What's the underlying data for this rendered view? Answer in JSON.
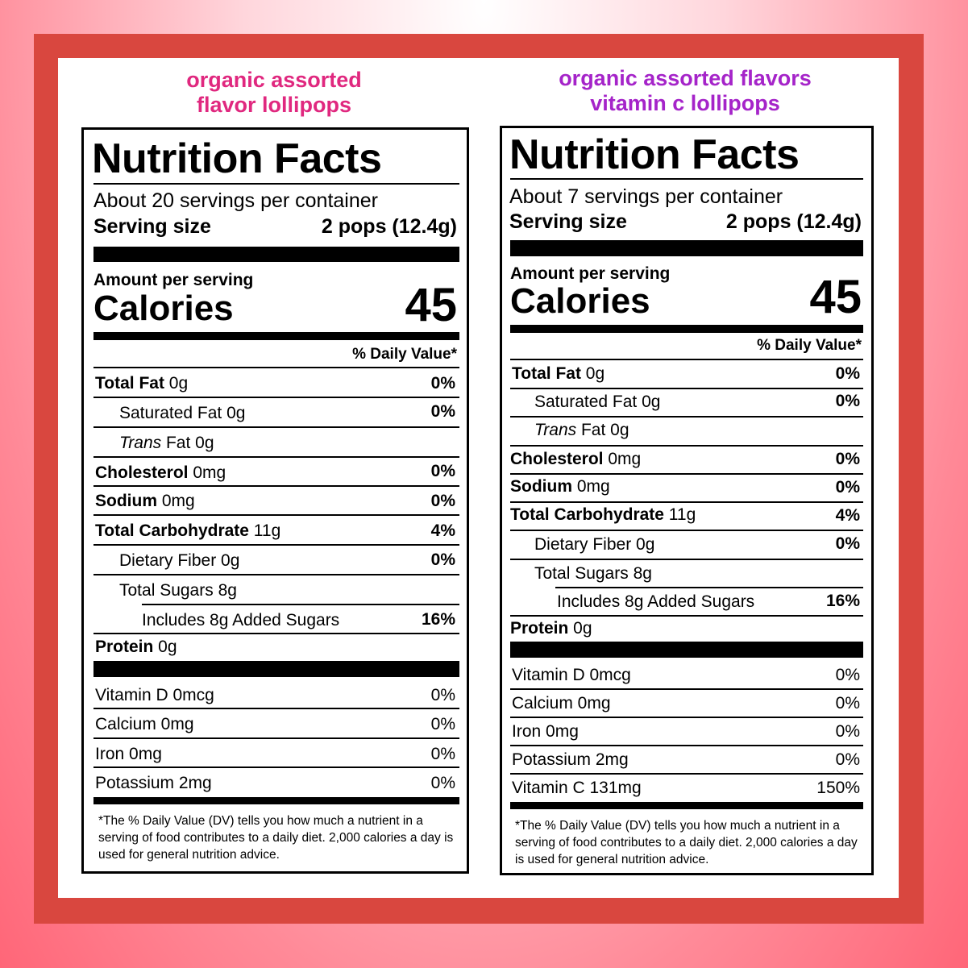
{
  "left": {
    "heading_line1": "organic assorted",
    "heading_line2": "flavor lollipops",
    "title": "Nutrition Facts",
    "servings": "About 20 servings per container",
    "serving_size_label": "Serving size",
    "serving_size_value": "2 pops (12.4g)",
    "amount_per_serving": "Amount per serving",
    "calories_label": "Calories",
    "calories_value": "45",
    "daily_value_header": "% Daily Value*",
    "nutrients": [
      {
        "name": "Total Fat",
        "amount": " 0g",
        "dv": "0%"
      },
      {
        "name": "Saturated Fat 0g",
        "amount": "",
        "dv": "0%"
      },
      {
        "name": "Trans",
        "amount": " Fat 0g",
        "dv": ""
      },
      {
        "name": "Cholesterol",
        "amount": " 0mg",
        "dv": "0%"
      },
      {
        "name": "Sodium",
        "amount": " 0mg",
        "dv": "0%"
      },
      {
        "name": "Total Carbohydrate",
        "amount": " 11g",
        "dv": "4%"
      },
      {
        "name": "Dietary Fiber 0g",
        "amount": "",
        "dv": "0%"
      },
      {
        "name": "Total Sugars 8g",
        "amount": "",
        "dv": ""
      },
      {
        "name": "Includes 8g Added Sugars",
        "amount": "",
        "dv": "16%"
      },
      {
        "name": "Protein",
        "amount": " 0g",
        "dv": ""
      }
    ],
    "vitamins": [
      {
        "name": "Vitamin D 0mcg",
        "dv": "0%"
      },
      {
        "name": "Calcium 0mg",
        "dv": "0%"
      },
      {
        "name": "Iron 0mg",
        "dv": "0%"
      },
      {
        "name": "Potassium 2mg",
        "dv": "0%"
      }
    ],
    "footnote": "*The % Daily Value (DV) tells you how much a nutrient in a serving of food contributes to a daily diet. 2,000 calories a day is used for general nutrition advice."
  },
  "right": {
    "heading_line1": "organic assorted flavors",
    "heading_line2": "vitamin c lollipops",
    "title": "Nutrition Facts",
    "servings": "About 7 servings per container",
    "serving_size_label": "Serving size",
    "serving_size_value": "2 pops (12.4g)",
    "amount_per_serving": "Amount per serving",
    "calories_label": "Calories",
    "calories_value": "45",
    "daily_value_header": "% Daily Value*",
    "nutrients": [
      {
        "name": "Total Fat",
        "amount": " 0g",
        "dv": "0%"
      },
      {
        "name": "Saturated Fat 0g",
        "amount": "",
        "dv": "0%"
      },
      {
        "name": "Trans",
        "amount": " Fat 0g",
        "dv": ""
      },
      {
        "name": "Cholesterol",
        "amount": " 0mg",
        "dv": "0%"
      },
      {
        "name": "Sodium",
        "amount": " 0mg",
        "dv": "0%"
      },
      {
        "name": "Total Carbohydrate",
        "amount": " 11g",
        "dv": "4%"
      },
      {
        "name": "Dietary Fiber 0g",
        "amount": "",
        "dv": "0%"
      },
      {
        "name": "Total Sugars 8g",
        "amount": "",
        "dv": ""
      },
      {
        "name": "Includes 8g Added Sugars",
        "amount": "",
        "dv": "16%"
      },
      {
        "name": "Protein",
        "amount": " 0g",
        "dv": ""
      }
    ],
    "vitamins": [
      {
        "name": "Vitamin D 0mcg",
        "dv": "0%"
      },
      {
        "name": "Calcium 0mg",
        "dv": "0%"
      },
      {
        "name": "Iron 0mg",
        "dv": "0%"
      },
      {
        "name": "Potassium 2mg",
        "dv": "0%"
      },
      {
        "name": "Vitamin C 131mg",
        "dv": "150%"
      }
    ],
    "footnote": "*The % Daily Value (DV) tells you how much a nutrient in a serving of food contributes to a daily diet. 2,000 calories a day is used for general nutrition advice."
  },
  "colors": {
    "frame": "#d9473f",
    "left_heading": "#e0287f",
    "right_heading": "#a524c9"
  }
}
